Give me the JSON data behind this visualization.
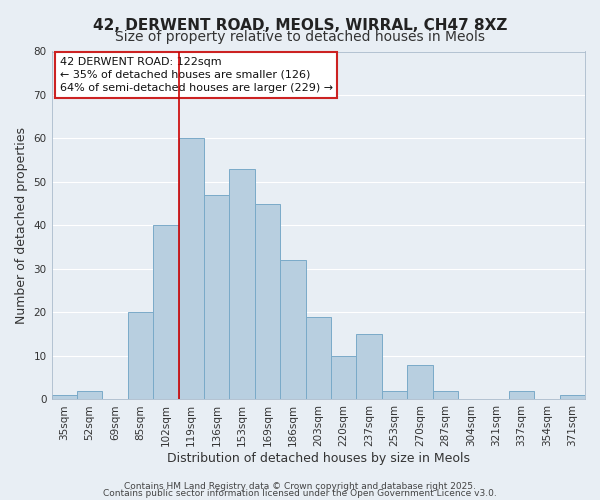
{
  "title": "42, DERWENT ROAD, MEOLS, WIRRAL, CH47 8XZ",
  "subtitle": "Size of property relative to detached houses in Meols",
  "xlabel": "Distribution of detached houses by size in Meols",
  "ylabel": "Number of detached properties",
  "categories": [
    "35sqm",
    "52sqm",
    "69sqm",
    "85sqm",
    "102sqm",
    "119sqm",
    "136sqm",
    "153sqm",
    "169sqm",
    "186sqm",
    "203sqm",
    "220sqm",
    "237sqm",
    "253sqm",
    "270sqm",
    "287sqm",
    "304sqm",
    "321sqm",
    "337sqm",
    "354sqm",
    "371sqm"
  ],
  "values": [
    1,
    2,
    0,
    20,
    40,
    60,
    47,
    53,
    45,
    32,
    19,
    10,
    15,
    2,
    8,
    2,
    0,
    0,
    2,
    0,
    1
  ],
  "bar_color": "#b8cfe0",
  "bar_edge_color": "#7aaac8",
  "annotation_line1": "42 DERWENT ROAD: 122sqm",
  "annotation_line2": "← 35% of detached houses are smaller (126)",
  "annotation_line3": "64% of semi-detached houses are larger (229) →",
  "vline_index": 5,
  "vline_color": "#cc0000",
  "ylim": [
    0,
    80
  ],
  "yticks": [
    0,
    10,
    20,
    30,
    40,
    50,
    60,
    70,
    80
  ],
  "footer1": "Contains HM Land Registry data © Crown copyright and database right 2025.",
  "footer2": "Contains public sector information licensed under the Open Government Licence v3.0.",
  "background_color": "#e8eef4",
  "plot_bg_color": "#e8eef4",
  "grid_color": "#ffffff",
  "title_fontsize": 11,
  "subtitle_fontsize": 10,
  "axis_label_fontsize": 9,
  "tick_fontsize": 7.5,
  "footer_fontsize": 6.5,
  "annotation_fontsize": 8
}
